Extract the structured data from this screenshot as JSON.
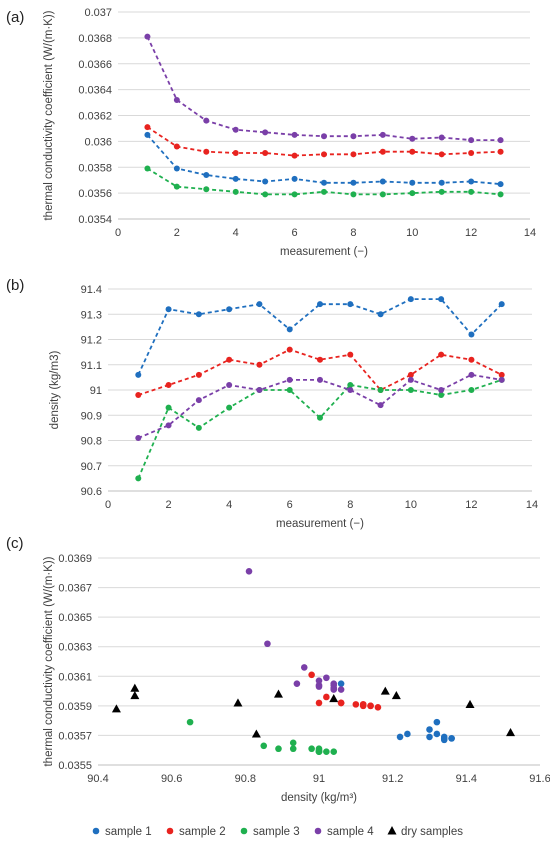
{
  "series_colors": {
    "sample1": "#1f6fbf",
    "sample2": "#e8231f",
    "sample3": "#1fb04f",
    "sample4": "#7a3fa8",
    "dry": "#000000"
  },
  "legend": [
    "sample 1",
    "sample 2",
    "sample 3",
    "sample 4",
    "dry samples"
  ],
  "chart_data": [
    {
      "panel": "(a)",
      "type": "line",
      "xlabel": "measurement (−)",
      "ylabel": "thermal conductivity coefficient (W/(m·K))",
      "xlim": [
        0,
        14
      ],
      "ylim": [
        0.0354,
        0.037
      ],
      "xticks": [
        "0",
        "2",
        "4",
        "6",
        "8",
        "10",
        "12",
        "14"
      ],
      "yticks": [
        "0.0354",
        "0.0356",
        "0.0358",
        "0.036",
        "0.0362",
        "0.0364",
        "0.0366",
        "0.0368",
        "0.037"
      ],
      "x": [
        1,
        2,
        3,
        4,
        5,
        6,
        7,
        8,
        9,
        10,
        11,
        12,
        13
      ],
      "series": [
        {
          "name": "sample 1",
          "values": [
            0.03605,
            0.03579,
            0.03574,
            0.03571,
            0.03569,
            0.03571,
            0.03568,
            0.03568,
            0.03569,
            0.03568,
            0.03568,
            0.03569,
            0.03567
          ]
        },
        {
          "name": "sample 2",
          "values": [
            0.03611,
            0.03596,
            0.03592,
            0.03591,
            0.03591,
            0.03589,
            0.0359,
            0.0359,
            0.03592,
            0.03592,
            0.0359,
            0.03591,
            0.03592
          ]
        },
        {
          "name": "sample 3",
          "values": [
            0.03579,
            0.03565,
            0.03563,
            0.03561,
            0.03559,
            0.03559,
            0.03561,
            0.03559,
            0.03559,
            0.0356,
            0.03561,
            0.03561,
            0.03559
          ]
        },
        {
          "name": "sample 4",
          "values": [
            0.03681,
            0.03632,
            0.03616,
            0.03609,
            0.03607,
            0.03605,
            0.03604,
            0.03604,
            0.03605,
            0.03602,
            0.03603,
            0.03601,
            0.03601
          ]
        }
      ]
    },
    {
      "panel": "(b)",
      "type": "line",
      "xlabel": "measurement (−)",
      "ylabel": "density (kg/m3)",
      "xlim": [
        0,
        14
      ],
      "ylim": [
        90.6,
        91.4
      ],
      "xticks": [
        "0",
        "2",
        "4",
        "6",
        "8",
        "10",
        "12",
        "14"
      ],
      "yticks": [
        "90.6",
        "90.7",
        "90.8",
        "90.9",
        "91",
        "91.1",
        "91.2",
        "91.3",
        "91.4"
      ],
      "x": [
        1,
        2,
        3,
        4,
        5,
        6,
        7,
        8,
        9,
        10,
        11,
        12,
        13
      ],
      "series": [
        {
          "name": "sample 1",
          "values": [
            91.06,
            91.32,
            91.3,
            91.32,
            91.34,
            91.24,
            91.34,
            91.34,
            91.3,
            91.36,
            91.36,
            91.22,
            91.34
          ]
        },
        {
          "name": "sample 2",
          "values": [
            90.98,
            91.02,
            91.06,
            91.12,
            91.1,
            91.16,
            91.12,
            91.14,
            91.0,
            91.06,
            91.14,
            91.12,
            91.06
          ]
        },
        {
          "name": "sample 3",
          "values": [
            90.65,
            90.93,
            90.85,
            90.93,
            91.0,
            91.0,
            90.89,
            91.02,
            91.0,
            91.0,
            90.98,
            91.0,
            91.04
          ]
        },
        {
          "name": "sample 4",
          "values": [
            90.81,
            90.86,
            90.96,
            91.02,
            91.0,
            91.04,
            91.04,
            91.0,
            90.94,
            91.04,
            91.0,
            91.06,
            91.04
          ]
        }
      ]
    },
    {
      "panel": "(c)",
      "type": "scatter",
      "xlabel": "density (kg/m³)",
      "ylabel": "thermal conductivity coefficient (W/(m·K))",
      "xlim": [
        90.4,
        91.6
      ],
      "ylim": [
        0.0355,
        0.0369
      ],
      "xticks": [
        "90.4",
        "90.6",
        "90.8",
        "91",
        "91.2",
        "91.4",
        "91.6"
      ],
      "yticks": [
        "0.0355",
        "0.0357",
        "0.0359",
        "0.0361",
        "0.0363",
        "0.0365",
        "0.0367",
        "0.0369"
      ],
      "series": [
        {
          "name": "sample 1",
          "marker": "circle",
          "points": [
            [
              91.06,
              0.03605
            ],
            [
              91.32,
              0.03579
            ],
            [
              91.3,
              0.03574
            ],
            [
              91.32,
              0.03571
            ],
            [
              91.34,
              0.03569
            ],
            [
              91.24,
              0.03571
            ],
            [
              91.34,
              0.03568
            ],
            [
              91.34,
              0.03568
            ],
            [
              91.3,
              0.03569
            ],
            [
              91.36,
              0.03568
            ],
            [
              91.36,
              0.03568
            ],
            [
              91.22,
              0.03569
            ],
            [
              91.34,
              0.03567
            ]
          ]
        },
        {
          "name": "sample 2",
          "marker": "circle",
          "points": [
            [
              90.98,
              0.03611
            ],
            [
              91.02,
              0.03596
            ],
            [
              91.06,
              0.03592
            ],
            [
              91.12,
              0.03591
            ],
            [
              91.1,
              0.03591
            ],
            [
              91.16,
              0.03589
            ],
            [
              91.12,
              0.0359
            ],
            [
              91.14,
              0.0359
            ],
            [
              91.0,
              0.03592
            ],
            [
              91.06,
              0.03592
            ],
            [
              91.14,
              0.0359
            ],
            [
              91.12,
              0.03591
            ],
            [
              91.06,
              0.03592
            ]
          ]
        },
        {
          "name": "sample 3",
          "marker": "circle",
          "points": [
            [
              90.65,
              0.03579
            ],
            [
              90.93,
              0.03565
            ],
            [
              90.85,
              0.03563
            ],
            [
              90.93,
              0.03561
            ],
            [
              91.0,
              0.03559
            ],
            [
              91.0,
              0.03559
            ],
            [
              90.89,
              0.03561
            ],
            [
              91.02,
              0.03559
            ],
            [
              91.0,
              0.03559
            ],
            [
              91.0,
              0.0356
            ],
            [
              90.98,
              0.03561
            ],
            [
              91.0,
              0.03561
            ],
            [
              91.04,
              0.03559
            ]
          ]
        },
        {
          "name": "sample 4",
          "marker": "circle",
          "points": [
            [
              90.81,
              0.03681
            ],
            [
              90.86,
              0.03632
            ],
            [
              90.96,
              0.03616
            ],
            [
              91.02,
              0.03609
            ],
            [
              91.0,
              0.03607
            ],
            [
              91.04,
              0.03605
            ],
            [
              91.04,
              0.03604
            ],
            [
              91.0,
              0.03604
            ],
            [
              90.94,
              0.03605
            ],
            [
              91.04,
              0.03602
            ],
            [
              91.0,
              0.03603
            ],
            [
              91.06,
              0.03601
            ],
            [
              91.04,
              0.03601
            ]
          ]
        },
        {
          "name": "dry samples",
          "marker": "triangle",
          "points": [
            [
              90.45,
              0.03588
            ],
            [
              90.5,
              0.03602
            ],
            [
              90.5,
              0.03597
            ],
            [
              90.78,
              0.03592
            ],
            [
              90.83,
              0.03571
            ],
            [
              90.89,
              0.03598
            ],
            [
              91.04,
              0.03595
            ],
            [
              91.18,
              0.036
            ],
            [
              91.21,
              0.03597
            ],
            [
              91.41,
              0.03591
            ],
            [
              91.52,
              0.03572
            ]
          ]
        }
      ]
    }
  ]
}
